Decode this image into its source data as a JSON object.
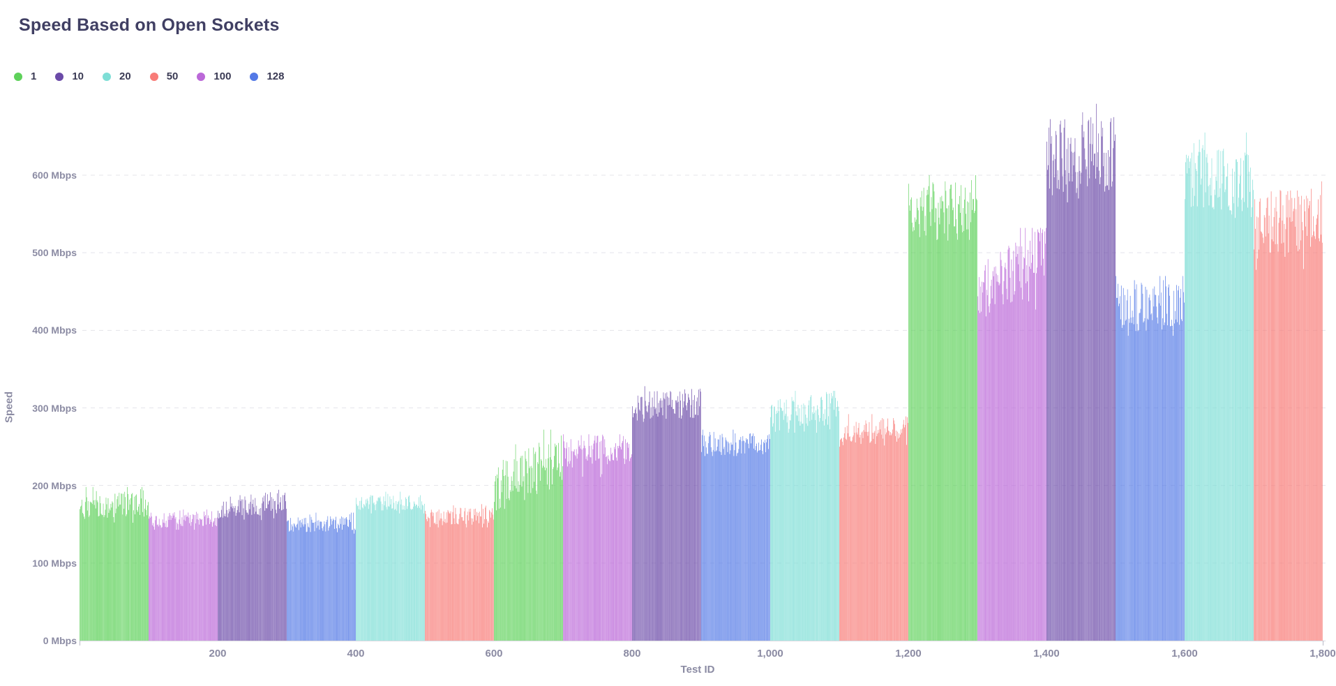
{
  "title": "Speed Based on Open Sockets",
  "legend": [
    {
      "label": "1",
      "color": "#5ed15a"
    },
    {
      "label": "10",
      "color": "#6b4aa8"
    },
    {
      "label": "20",
      "color": "#7eded6"
    },
    {
      "label": "50",
      "color": "#f87c78"
    },
    {
      "label": "100",
      "color": "#bb68d8"
    },
    {
      "label": "128",
      "color": "#5379e6"
    }
  ],
  "axes": {
    "x": {
      "label": "Test ID",
      "min": 0,
      "max": 1800,
      "ticks": [
        {
          "value": 200,
          "label": "200"
        },
        {
          "value": 400,
          "label": "400"
        },
        {
          "value": 600,
          "label": "600"
        },
        {
          "value": 800,
          "label": "800"
        },
        {
          "value": 1000,
          "label": "1,000"
        },
        {
          "value": 1200,
          "label": "1,200"
        },
        {
          "value": 1400,
          "label": "1,400"
        },
        {
          "value": 1600,
          "label": "1,600"
        },
        {
          "value": 1800,
          "label": "1,800"
        }
      ]
    },
    "y": {
      "label": "Speed",
      "min": 0,
      "max": 600,
      "ticks": [
        {
          "value": 0,
          "label": "0 Mbps"
        },
        {
          "value": 100,
          "label": "100 Mbps"
        },
        {
          "value": 200,
          "label": "200 Mbps"
        },
        {
          "value": 300,
          "label": "300 Mbps"
        },
        {
          "value": 400,
          "label": "400 Mbps"
        },
        {
          "value": 500,
          "label": "500 Mbps"
        },
        {
          "value": 600,
          "label": "600 Mbps"
        }
      ]
    }
  },
  "colors": {
    "title_text": "#403f63",
    "legend_text": "#3b3b55",
    "tick_text": "#8b8ba3",
    "gridline": "#e4e4ea",
    "axis_line": "#d8d8df",
    "background": "#ffffff"
  },
  "chart_data": {
    "type": "bar",
    "title": "Speed Based on Open Sockets",
    "xlabel": "Test ID",
    "ylabel": "Speed",
    "x_range": [
      0,
      1800
    ],
    "y_range_mbps": [
      0,
      600
    ],
    "y_gridlines_mbps": [
      100,
      200,
      300,
      400,
      500,
      600
    ],
    "grid": "dashed-horizontal",
    "legend_position": "top-left",
    "series_key": "open_sockets",
    "bars_per_group": 100,
    "unit": "Mbps",
    "groups": [
      {
        "test_id_start": 0,
        "test_id_end": 99,
        "open_sockets": 1,
        "color": "#5ed15a",
        "speed_min": 152,
        "speed_max": 198,
        "trend_start": 172,
        "trend_end": 176,
        "spread": 36
      },
      {
        "test_id_start": 100,
        "test_id_end": 199,
        "open_sockets": 100,
        "color": "#bb68d8",
        "speed_min": 143,
        "speed_max": 169,
        "trend_start": 155,
        "trend_end": 157,
        "spread": 20
      },
      {
        "test_id_start": 200,
        "test_id_end": 299,
        "open_sockets": 10,
        "color": "#6b4aa8",
        "speed_min": 155,
        "speed_max": 196,
        "trend_start": 169,
        "trend_end": 180,
        "spread": 30
      },
      {
        "test_id_start": 300,
        "test_id_end": 399,
        "open_sockets": 128,
        "color": "#5379e6",
        "speed_min": 138,
        "speed_max": 165,
        "trend_start": 150,
        "trend_end": 153,
        "spread": 22
      },
      {
        "test_id_start": 400,
        "test_id_end": 499,
        "open_sockets": 20,
        "color": "#7eded6",
        "speed_min": 164,
        "speed_max": 192,
        "trend_start": 178,
        "trend_end": 177,
        "spread": 20
      },
      {
        "test_id_start": 500,
        "test_id_end": 599,
        "open_sockets": 50,
        "color": "#f87c78",
        "speed_min": 146,
        "speed_max": 176,
        "trend_start": 158,
        "trend_end": 163,
        "spread": 24
      },
      {
        "test_id_start": 600,
        "test_id_end": 699,
        "open_sockets": 1,
        "color": "#5ed15a",
        "speed_min": 168,
        "speed_max": 272,
        "trend_start": 196,
        "trend_end": 238,
        "spread": 70
      },
      {
        "test_id_start": 700,
        "test_id_end": 799,
        "open_sockets": 100,
        "color": "#bb68d8",
        "speed_min": 196,
        "speed_max": 266,
        "trend_start": 242,
        "trend_end": 250,
        "spread": 40
      },
      {
        "test_id_start": 800,
        "test_id_end": 899,
        "open_sockets": 10,
        "color": "#6b4aa8",
        "speed_min": 282,
        "speed_max": 328,
        "trend_start": 302,
        "trend_end": 306,
        "spread": 38
      },
      {
        "test_id_start": 900,
        "test_id_end": 999,
        "open_sockets": 128,
        "color": "#5379e6",
        "speed_min": 238,
        "speed_max": 272,
        "trend_start": 252,
        "trend_end": 256,
        "spread": 28
      },
      {
        "test_id_start": 1000,
        "test_id_end": 1099,
        "open_sockets": 20,
        "color": "#7eded6",
        "speed_min": 268,
        "speed_max": 322,
        "trend_start": 290,
        "trend_end": 300,
        "spread": 42
      },
      {
        "test_id_start": 1100,
        "test_id_end": 1199,
        "open_sockets": 50,
        "color": "#f87c78",
        "speed_min": 250,
        "speed_max": 292,
        "trend_start": 265,
        "trend_end": 276,
        "spread": 30
      },
      {
        "test_id_start": 1200,
        "test_id_end": 1299,
        "open_sockets": 1,
        "color": "#5ed15a",
        "speed_min": 508,
        "speed_max": 600,
        "trend_start": 552,
        "trend_end": 556,
        "spread": 78
      },
      {
        "test_id_start": 1300,
        "test_id_end": 1399,
        "open_sockets": 100,
        "color": "#bb68d8",
        "speed_min": 415,
        "speed_max": 532,
        "trend_start": 450,
        "trend_end": 498,
        "spread": 78
      },
      {
        "test_id_start": 1400,
        "test_id_end": 1499,
        "open_sockets": 10,
        "color": "#6b4aa8",
        "speed_min": 565,
        "speed_max": 692,
        "trend_start": 622,
        "trend_end": 630,
        "spread": 100
      },
      {
        "test_id_start": 1500,
        "test_id_end": 1599,
        "open_sockets": 128,
        "color": "#5379e6",
        "speed_min": 393,
        "speed_max": 470,
        "trend_start": 428,
        "trend_end": 433,
        "spread": 62
      },
      {
        "test_id_start": 1600,
        "test_id_end": 1699,
        "open_sockets": 20,
        "color": "#7eded6",
        "speed_min": 538,
        "speed_max": 655,
        "trend_start": 605,
        "trend_end": 582,
        "spread": 92
      },
      {
        "test_id_start": 1700,
        "test_id_end": 1799,
        "open_sockets": 50,
        "color": "#f87c78",
        "speed_min": 478,
        "speed_max": 592,
        "trend_start": 536,
        "trend_end": 541,
        "spread": 88
      }
    ]
  }
}
